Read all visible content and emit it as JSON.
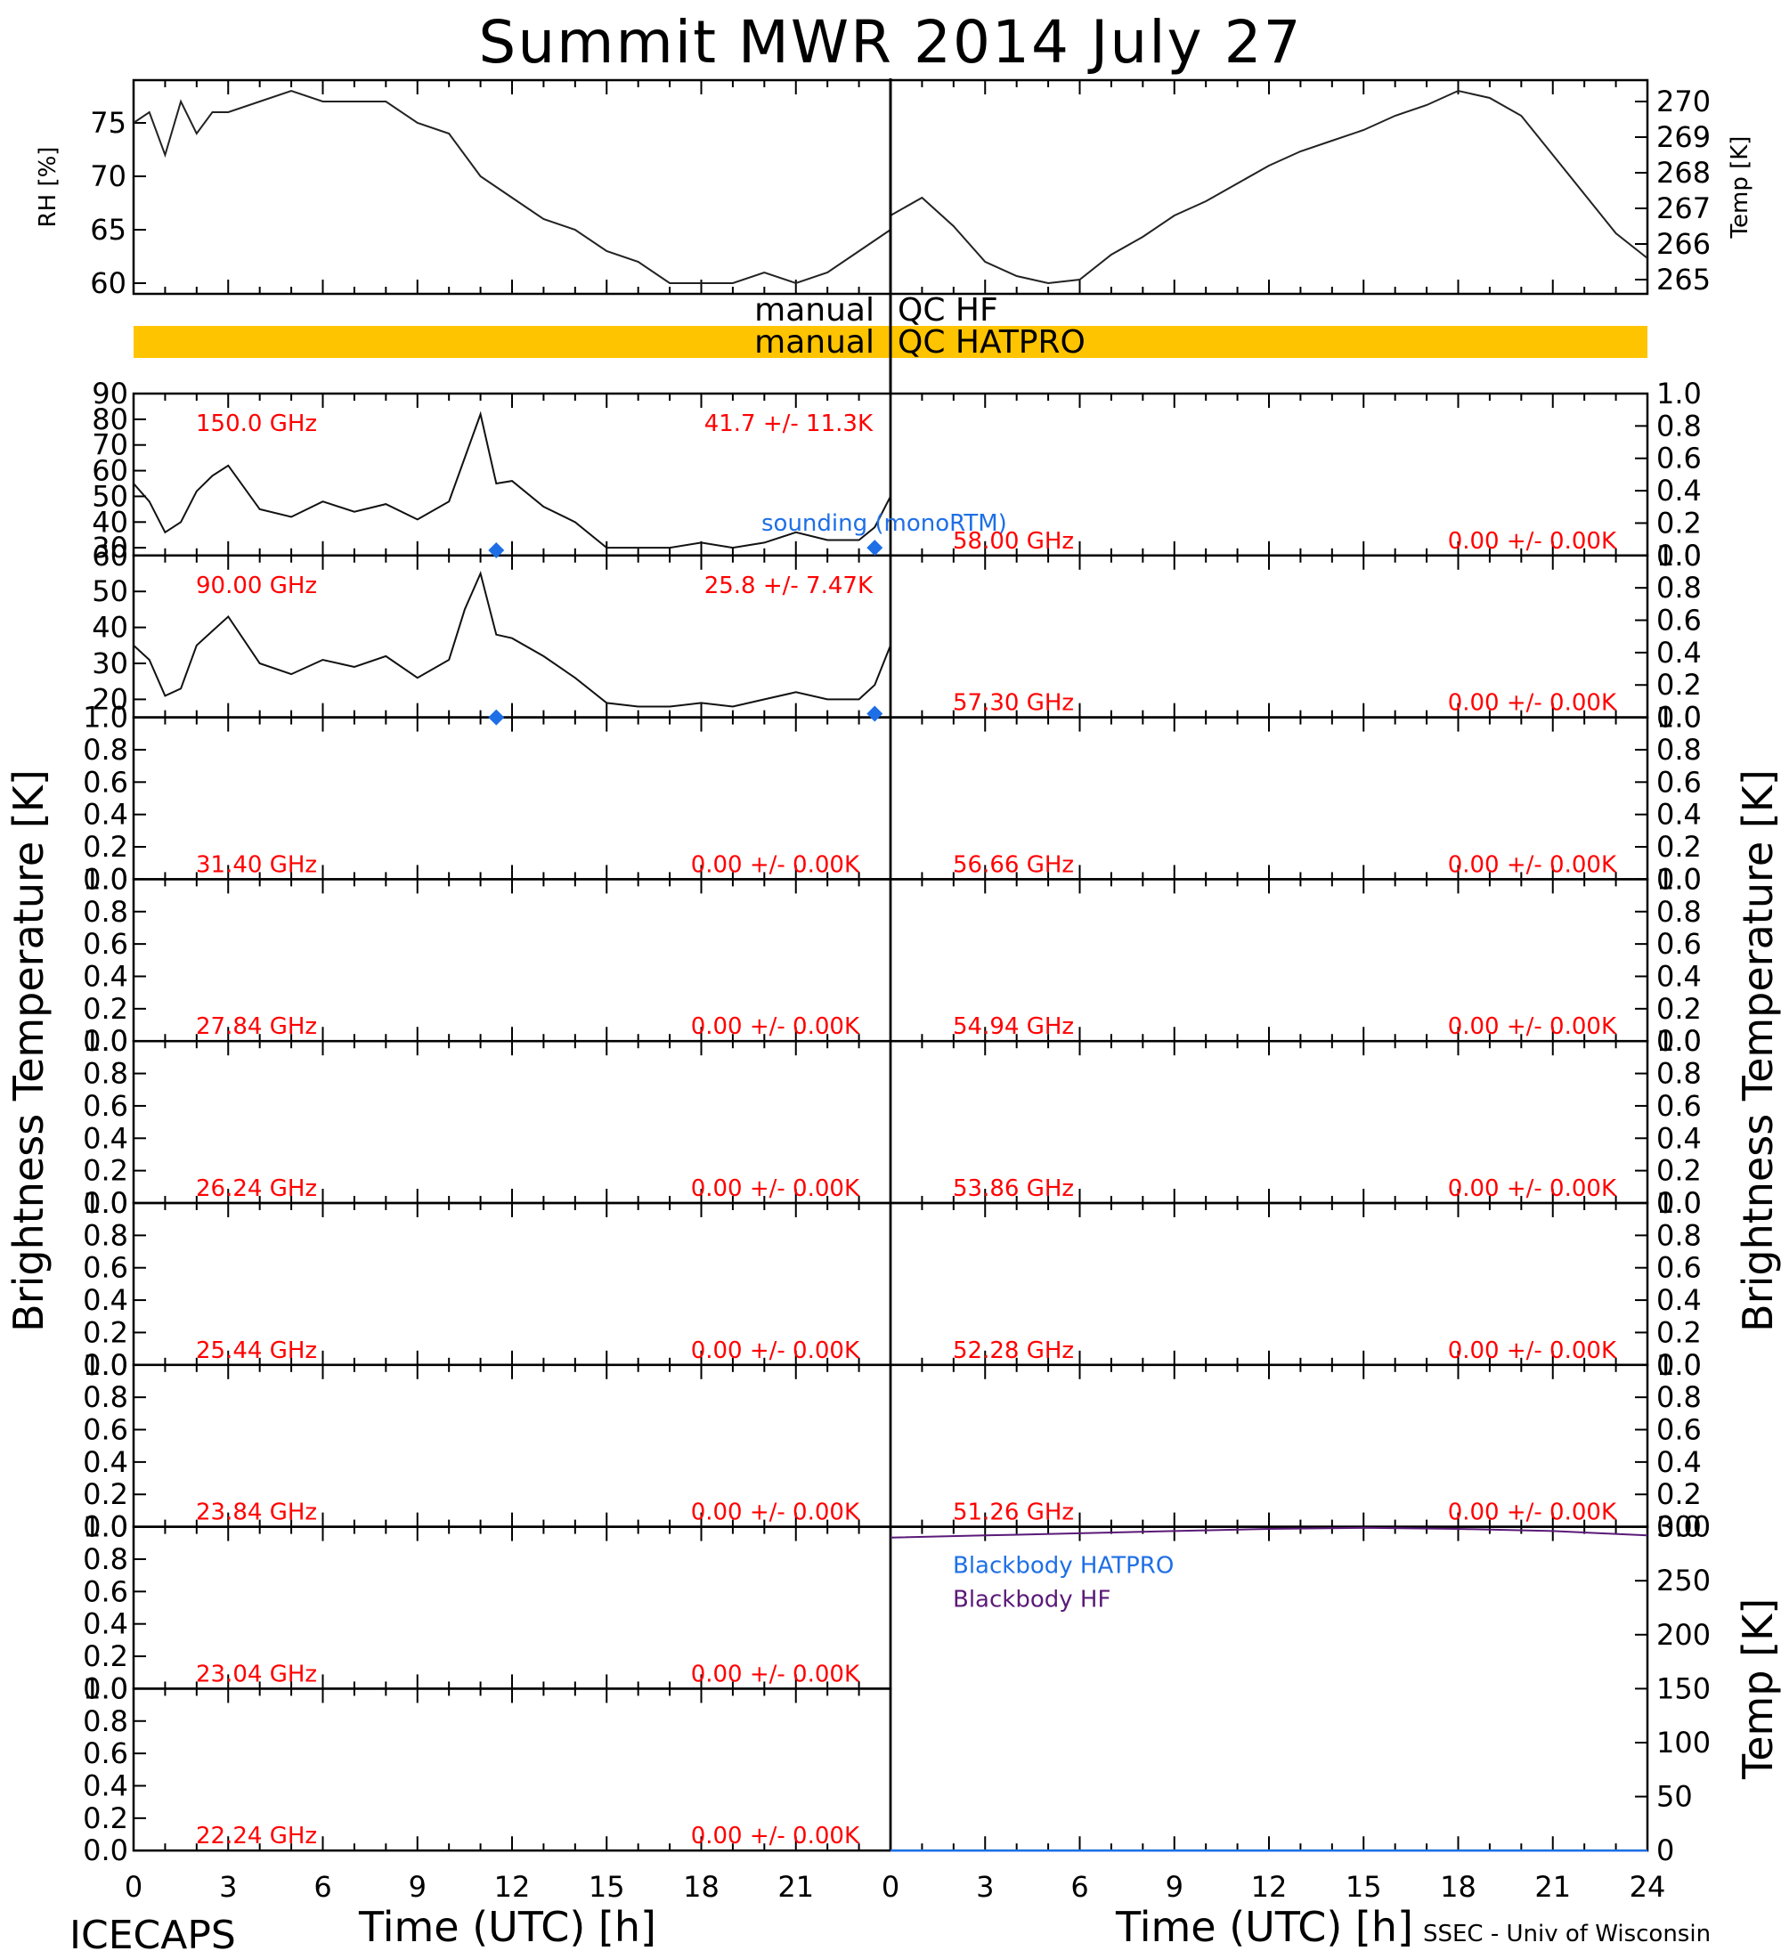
{
  "title": "Summit MWR 2014 July 27",
  "footer": {
    "left": "ICECAPS",
    "right": "SSEC - Univ of Wisconsin"
  },
  "x_axis": {
    "label": "Time (UTC) [h]",
    "ticks": [
      "0",
      "3",
      "6",
      "9",
      "12",
      "15",
      "18",
      "21",
      "0",
      "3",
      "6",
      "9",
      "12",
      "15",
      "18",
      "21",
      "24"
    ]
  },
  "y_axis_labels": {
    "left": "Brightness Temperature [K]",
    "right": "Brightness Temperature [K]"
  },
  "qc_bands": {
    "hf": {
      "left": "manual",
      "right": "QC HF",
      "color": ""
    },
    "hatpro": {
      "left": "manual",
      "right": "QC HATPRO",
      "color": "#ffc400"
    }
  },
  "met_panel": {
    "rh_label": "RH [%]",
    "rh_ticks": [
      "60",
      "65",
      "70",
      "75"
    ],
    "temp_label": "Temp [K]",
    "temp_ticks": [
      "265",
      "266",
      "267",
      "268",
      "269",
      "270"
    ]
  },
  "unit_ticks": [
    "0.0",
    "0.2",
    "0.4",
    "0.6",
    "0.8",
    "1.0"
  ],
  "panels_left": [
    {
      "freq": "150.0 GHz",
      "stats": "41.7 +/-  11.3K",
      "ticks": [
        "30",
        "40",
        "50",
        "60",
        "70",
        "80",
        "90"
      ],
      "legend": "sounding (monoRTM)"
    },
    {
      "freq": "90.00 GHz",
      "stats": "25.8 +/-  7.47K",
      "ticks": [
        "20",
        "30",
        "40",
        "50",
        "60"
      ]
    },
    {
      "freq": "31.40 GHz",
      "stats": "0.00 +/-  0.00K"
    },
    {
      "freq": "27.84 GHz",
      "stats": "0.00 +/-  0.00K"
    },
    {
      "freq": "26.24 GHz",
      "stats": "0.00 +/-  0.00K"
    },
    {
      "freq": "25.44 GHz",
      "stats": "0.00 +/-  0.00K"
    },
    {
      "freq": "23.84 GHz",
      "stats": "0.00 +/-  0.00K"
    },
    {
      "freq": "23.04 GHz",
      "stats": "0.00 +/-  0.00K"
    },
    {
      "freq": "22.24 GHz",
      "stats": "0.00 +/-  0.00K"
    }
  ],
  "panels_right": [
    {
      "freq": "58.00 GHz",
      "stats": "0.00 +/-  0.00K"
    },
    {
      "freq": "57.30 GHz",
      "stats": "0.00 +/-  0.00K"
    },
    {
      "freq": "56.66 GHz",
      "stats": "0.00 +/-  0.00K"
    },
    {
      "freq": "54.94 GHz",
      "stats": "0.00 +/-  0.00K"
    },
    {
      "freq": "53.86 GHz",
      "stats": "0.00 +/-  0.00K"
    },
    {
      "freq": "52.28 GHz",
      "stats": "0.00 +/-  0.00K"
    },
    {
      "freq": "51.26 GHz",
      "stats": "0.00 +/-  0.00K"
    }
  ],
  "blackbody_panel": {
    "label": "Temp [K]",
    "ticks": [
      "0",
      "50",
      "100",
      "150",
      "200",
      "250",
      "300"
    ],
    "legend_hatpro": "Blackbody HATPRO",
    "legend_hf": "Blackbody HF",
    "color_hatpro": "#1e6fe6",
    "color_hf": "#5a1a78"
  },
  "chart_data": {
    "type": "line",
    "title": "Summit MWR 2014 July 27",
    "xlabel": "Time (UTC) [h]",
    "xlim": [
      0,
      24
    ],
    "series": [
      {
        "name": "RH [%]",
        "panel": "met-left",
        "ylim": [
          59,
          79
        ],
        "x": [
          0,
          0.5,
          1,
          1.5,
          2,
          2.5,
          3,
          4,
          5,
          6,
          7,
          8,
          9,
          10,
          11,
          12,
          13,
          14,
          15,
          16,
          17,
          18,
          19,
          20,
          21,
          22,
          23,
          24
        ],
        "y": [
          75,
          76,
          72,
          77,
          74,
          76,
          76,
          77,
          78,
          77,
          77,
          77,
          75,
          74,
          70,
          68,
          66,
          65,
          63,
          62,
          60,
          60,
          60,
          61,
          60,
          61,
          63,
          65
        ]
      },
      {
        "name": "Temp [K]",
        "panel": "met-right",
        "ylim": [
          264.6,
          270.6
        ],
        "x": [
          0,
          1,
          2,
          3,
          4,
          5,
          6,
          7,
          8,
          9,
          10,
          11,
          12,
          13,
          14,
          15,
          16,
          17,
          18,
          19,
          20,
          21,
          22,
          23,
          24
        ],
        "y": [
          266.8,
          267.3,
          266.5,
          265.5,
          265.1,
          264.9,
          265.0,
          265.7,
          266.2,
          266.8,
          267.2,
          267.7,
          268.2,
          268.6,
          268.9,
          269.2,
          269.6,
          269.9,
          270.3,
          270.1,
          269.6,
          268.5,
          267.4,
          266.3,
          265.6
        ]
      },
      {
        "name": "150.0 GHz",
        "panel": "left-0",
        "ylim": [
          27,
          90
        ],
        "x": [
          0,
          0.5,
          1,
          1.5,
          2,
          2.5,
          3,
          4,
          5,
          6,
          7,
          8,
          9,
          10,
          10.5,
          11,
          11.5,
          12,
          13,
          14,
          15,
          16,
          17,
          18,
          19,
          20,
          21,
          22,
          23,
          23.5,
          24
        ],
        "y": [
          55,
          48,
          36,
          40,
          52,
          58,
          62,
          45,
          42,
          48,
          44,
          47,
          41,
          48,
          65,
          82,
          55,
          56,
          46,
          40,
          30,
          30,
          30,
          32,
          30,
          32,
          36,
          33,
          33,
          38,
          50
        ]
      },
      {
        "name": "90.00 GHz",
        "panel": "left-1",
        "ylim": [
          15,
          60
        ],
        "x": [
          0,
          0.5,
          1,
          1.5,
          2,
          2.5,
          3,
          4,
          5,
          6,
          7,
          8,
          9,
          10,
          10.5,
          11,
          11.5,
          12,
          13,
          14,
          15,
          16,
          17,
          18,
          19,
          20,
          21,
          22,
          23,
          23.5,
          24
        ],
        "y": [
          35,
          31,
          21,
          23,
          35,
          39,
          43,
          30,
          27,
          31,
          29,
          32,
          26,
          31,
          45,
          55,
          38,
          37,
          32,
          26,
          19,
          18,
          18,
          19,
          18,
          20,
          22,
          20,
          20,
          24,
          35
        ]
      },
      {
        "name": "Blackbody HF",
        "panel": "right-7",
        "ylim": [
          0,
          300
        ],
        "x": [
          0,
          3,
          6,
          9,
          12,
          15,
          18,
          21,
          24
        ],
        "y": [
          290,
          292,
          294,
          296,
          298,
          299,
          298,
          296,
          292
        ]
      },
      {
        "name": "Blackbody HATPRO",
        "panel": "right-7",
        "ylim": [
          0,
          300
        ],
        "x": [
          0,
          24
        ],
        "y": [
          0,
          0
        ]
      }
    ],
    "soundings": [
      {
        "panel": "left-0",
        "x": [
          11.5,
          23.5
        ],
        "y": [
          29,
          30
        ]
      },
      {
        "panel": "left-1",
        "x": [
          11.5,
          23.5
        ],
        "y": [
          15,
          16
        ]
      }
    ]
  }
}
